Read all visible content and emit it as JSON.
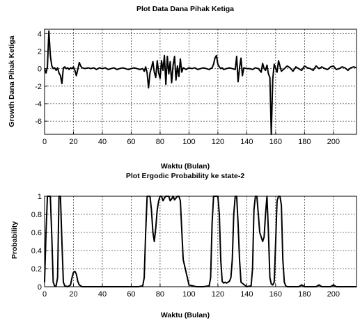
{
  "chart_data": [
    {
      "type": "line",
      "title": "Plot Data Dana Pihak Ketiga",
      "xlabel": "Waktu (Bulan)",
      "ylabel": "Growth Dana Pihak Ketiga",
      "xlim": [
        0,
        216
      ],
      "ylim": [
        -7.5,
        4.5
      ],
      "xticks": [
        0,
        20,
        40,
        60,
        80,
        100,
        120,
        140,
        160,
        180,
        200
      ],
      "yticks": [
        -6,
        -4,
        -2,
        0,
        2,
        4
      ],
      "grid": true,
      "series": [
        {
          "x": [
            0,
            1,
            2,
            3,
            4,
            5,
            6,
            7,
            8,
            9,
            10,
            11,
            12,
            13,
            14,
            15,
            16,
            17,
            18,
            19,
            20,
            21,
            22,
            23,
            24,
            25,
            26,
            28,
            30,
            32,
            34,
            36,
            38,
            40,
            42,
            44,
            46,
            48,
            50,
            52,
            54,
            56,
            58,
            60,
            62,
            64,
            66,
            68,
            69,
            70,
            71,
            72,
            73,
            74,
            75,
            76,
            77,
            78,
            79,
            80,
            81,
            82,
            83,
            84,
            85,
            86,
            87,
            88,
            89,
            90,
            91,
            92,
            93,
            94,
            95,
            96,
            98,
            100,
            102,
            104,
            106,
            108,
            110,
            112,
            114,
            116,
            117,
            118,
            119,
            120,
            121,
            122,
            123,
            124,
            126,
            128,
            130,
            132,
            133,
            134,
            135,
            136,
            137,
            138,
            140,
            142,
            144,
            146,
            148,
            150,
            151,
            152,
            153,
            154,
            155,
            156,
            157,
            158,
            159,
            160,
            161,
            162,
            164,
            166,
            168,
            170,
            172,
            174,
            176,
            178,
            180,
            182,
            184,
            186,
            188,
            190,
            192,
            194,
            196,
            198,
            200,
            202,
            204,
            206,
            208,
            210,
            212,
            214,
            216
          ],
          "y": [
            0,
            -0.5,
            0.2,
            4.3,
            1.5,
            0.3,
            0,
            0.1,
            -0.2,
            0.1,
            -0.5,
            -0.8,
            -1.7,
            0.1,
            0.2,
            0,
            0.1,
            -0.1,
            0.1,
            0,
            0.2,
            -0.2,
            -0.8,
            -0.1,
            0.7,
            0.3,
            0.1,
            0,
            0.1,
            0,
            0.1,
            -0.1,
            0.1,
            0,
            0.1,
            -0.1,
            0,
            0.1,
            -0.1,
            0,
            0.1,
            0,
            -0.1,
            0,
            0.1,
            0,
            -0.1,
            0,
            -0.3,
            0.2,
            -0.5,
            -2.2,
            -0.5,
            0.1,
            0.8,
            -0.4,
            -1.0,
            0.9,
            -0.5,
            -1.1,
            0.9,
            -0.2,
            1.5,
            -1.8,
            1.4,
            -0.6,
            0.8,
            -1.6,
            0.4,
            1.4,
            -1.3,
            0.3,
            -0.9,
            1.1,
            -0.4,
            0.1,
            -0.1,
            0.1,
            0,
            0.1,
            -0.1,
            0,
            0.1,
            0,
            -0.1,
            0.1,
            0.5,
            1.2,
            1.5,
            0.5,
            0.2,
            0,
            0.1,
            -0.1,
            0,
            0.1,
            0,
            -0.1,
            1.4,
            -1.5,
            0.1,
            1.2,
            -0.8,
            0.1,
            0,
            0,
            -0.1,
            0.1,
            0,
            -0.4,
            0.6,
            0,
            -0.2,
            0.4,
            -0.6,
            -1.0,
            -7.5,
            -1.2,
            0.5,
            0,
            -0.4,
            0.9,
            -0.3,
            0,
            0.3,
            0.1,
            -0.3,
            0.2,
            0,
            -0.2,
            0.3,
            0.1,
            0,
            -0.2,
            0.3,
            0,
            0.2,
            0,
            -0.1,
            0.2,
            0.3,
            -0.1,
            0,
            0.2,
            0.1,
            -0.2,
            0.1,
            0.2,
            0.1
          ]
        }
      ]
    },
    {
      "type": "line",
      "title": "Plot Ergodic Probability ke state-2",
      "xlabel": "Waktu (Bulan)",
      "ylabel": "Probability",
      "xlim": [
        0,
        216
      ],
      "ylim": [
        0,
        1
      ],
      "xticks": [
        0,
        20,
        40,
        60,
        80,
        100,
        120,
        140,
        160,
        180,
        200
      ],
      "yticks": [
        0,
        0.2,
        0.4,
        0.6,
        0.8,
        1
      ],
      "ytick_labels": [
        "0",
        "0.2",
        "0.4",
        "0.6",
        "0.8",
        "1"
      ],
      "grid": true,
      "series": [
        {
          "x": [
            0,
            1,
            2,
            3,
            4,
            5,
            6,
            7,
            8,
            9,
            10,
            11,
            12,
            13,
            14,
            16,
            18,
            19,
            20,
            21,
            22,
            23,
            24,
            26,
            30,
            40,
            50,
            60,
            65,
            68,
            69,
            70,
            71,
            72,
            73,
            74,
            75,
            76,
            77,
            78,
            79,
            80,
            81,
            82,
            83,
            84,
            85,
            86,
            87,
            88,
            89,
            90,
            91,
            92,
            93,
            94,
            96,
            100,
            105,
            110,
            114,
            115,
            116,
            117,
            118,
            119,
            120,
            121,
            122,
            123,
            124,
            125,
            126,
            127,
            128,
            129,
            130,
            131,
            132,
            133,
            134,
            135,
            136,
            140,
            143,
            144,
            145,
            146,
            147,
            148,
            149,
            150,
            151,
            152,
            153,
            154,
            155,
            156,
            157,
            158,
            159,
            160,
            161,
            162,
            163,
            164,
            165,
            166,
            167,
            168,
            170,
            174,
            176,
            178,
            180,
            184,
            186,
            188,
            190,
            192,
            196,
            198,
            200,
            202,
            204,
            206,
            210,
            216
          ],
          "y": [
            0.05,
            0.6,
            1.0,
            1.0,
            1.0,
            0.55,
            0.05,
            0.01,
            0.01,
            0.1,
            1.0,
            1.0,
            0.5,
            0.05,
            0.01,
            0,
            0.02,
            0.1,
            0.16,
            0.17,
            0.14,
            0.06,
            0.02,
            0,
            0,
            0,
            0,
            0,
            0,
            0.01,
            0.1,
            0.6,
            1.0,
            1.0,
            1.0,
            0.85,
            0.6,
            0.5,
            0.65,
            0.85,
            0.95,
            1.0,
            1.0,
            0.95,
            0.98,
            1.0,
            1.0,
            1.0,
            0.95,
            0.97,
            1.0,
            0.96,
            0.98,
            1.0,
            1.0,
            0.95,
            0.3,
            0.02,
            0,
            0,
            0.01,
            0.1,
            0.7,
            1.0,
            1.0,
            1.0,
            1.0,
            0.8,
            0.3,
            0.06,
            0.04,
            0.05,
            0.04,
            0.05,
            0.06,
            0.1,
            0.3,
            0.8,
            1.0,
            1.0,
            0.7,
            0.3,
            0.05,
            0,
            0.01,
            0.2,
            0.85,
            1.0,
            1.0,
            0.8,
            0.6,
            0.55,
            0.5,
            0.55,
            0.8,
            1.0,
            0.6,
            0.1,
            0.03,
            0.02,
            0.05,
            0.5,
            0.95,
            1.0,
            1.0,
            0.9,
            0.3,
            0.05,
            0.01,
            0,
            0,
            0,
            0,
            0.02,
            0,
            0,
            0,
            0,
            0.02,
            0,
            0,
            0,
            0.02,
            0,
            0,
            0,
            0,
            0
          ]
        }
      ]
    }
  ]
}
